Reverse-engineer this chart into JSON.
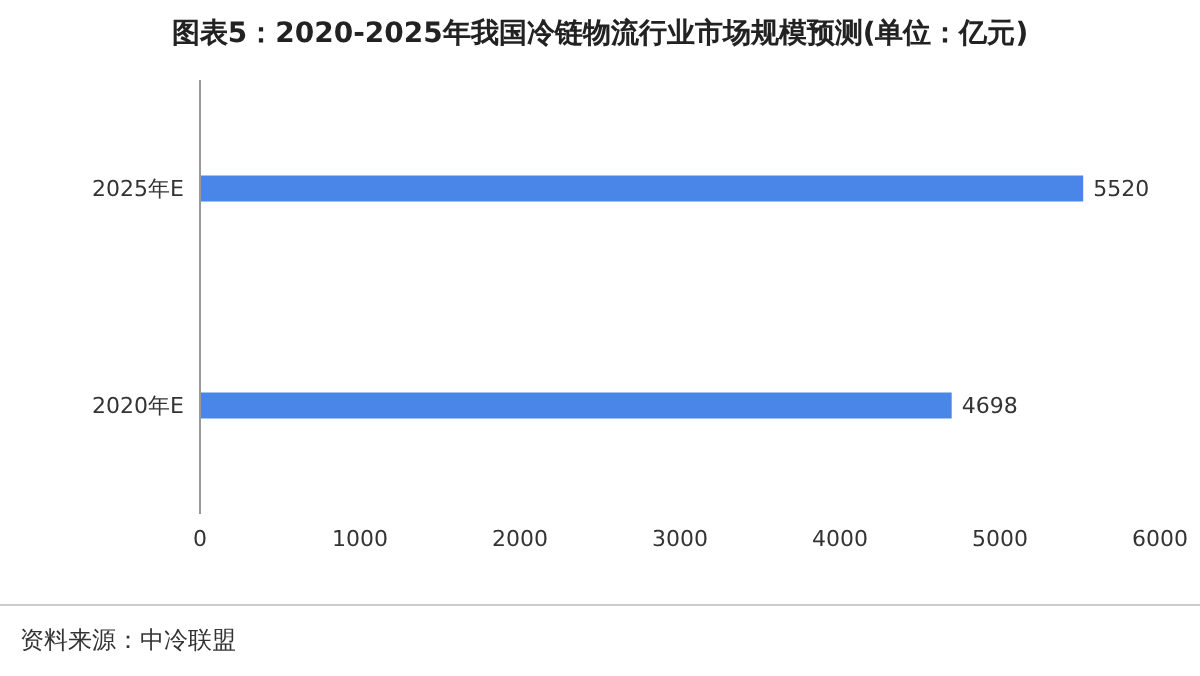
{
  "chart_data": {
    "type": "bar",
    "orientation": "horizontal",
    "title": "图表5：2020-2025年我国冷链物流行业市场规模预测(单位：亿元)",
    "categories": [
      "2025年E",
      "2020年E"
    ],
    "values": [
      5520,
      4698
    ],
    "color": "#4a86e8",
    "xlim": [
      0,
      6000
    ],
    "xticks": [
      0,
      1000,
      2000,
      3000,
      4000,
      5000,
      6000
    ],
    "grid": false,
    "data_labels": true,
    "annotations": [
      "资料来源：中冷联盟"
    ]
  }
}
